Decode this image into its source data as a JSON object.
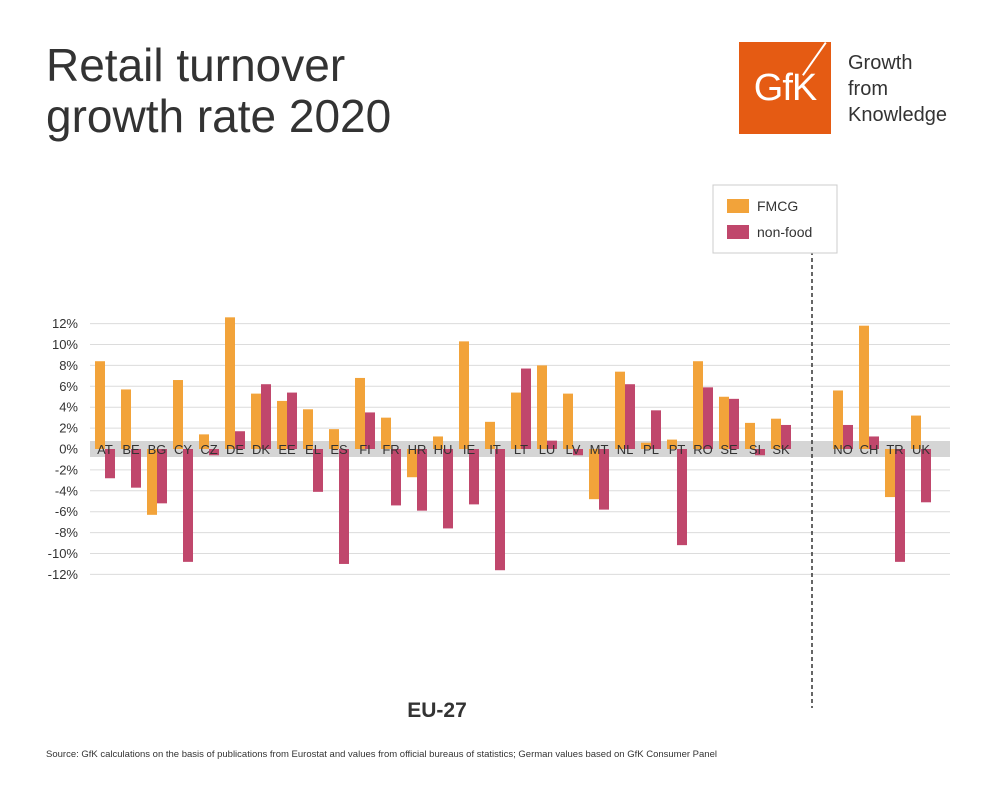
{
  "header": {
    "title_line1": "Retail turnover",
    "title_line2": "growth rate 2020"
  },
  "logo": {
    "text": "GfK",
    "tagline_line1": "Growth",
    "tagline_line2": "from",
    "tagline_line3": "Knowledge",
    "color": "#e55b13"
  },
  "footer": {
    "source": "Source: GfK calculations on the basis of publications from Eurostat and values from official bureaus of statistics; German values based on GfK Consumer Panel"
  },
  "chart_data": {
    "type": "bar",
    "group_label": "EU-27",
    "yticks": [
      "12%",
      "10%",
      "8%",
      "6%",
      "4%",
      "2%",
      "0%",
      "-2%",
      "-4%",
      "-6%",
      "-8%",
      "-10%",
      "-12%"
    ],
    "ylim": [
      -12,
      12.5
    ],
    "grid": true,
    "legend_position": "top-right",
    "categories": [
      "AT",
      "BE",
      "BG",
      "CY",
      "CZ",
      "DE",
      "DK",
      "EE",
      "EL",
      "ES",
      "FI",
      "FR",
      "HR",
      "HU",
      "IE",
      "IT",
      "LT",
      "LU",
      "LV",
      "MT",
      "NL",
      "PL",
      "PT",
      "RO",
      "SE",
      "SI",
      "SK",
      "NO",
      "CH",
      "TR",
      "UK"
    ],
    "series": [
      {
        "name": "FMCG",
        "color": "#f2a33a",
        "values": [
          8.4,
          5.7,
          -6.3,
          6.6,
          1.4,
          12.6,
          5.3,
          4.6,
          3.8,
          1.9,
          6.8,
          3.0,
          -2.7,
          1.2,
          10.3,
          2.6,
          5.4,
          8.0,
          5.3,
          -4.8,
          7.4,
          0.6,
          0.9,
          8.4,
          5.0,
          2.5,
          2.9,
          5.6,
          11.8,
          -4.6,
          3.2
        ]
      },
      {
        "name": "non-food",
        "color": "#c0476c",
        "values": [
          -2.8,
          -3.7,
          -5.2,
          -10.8,
          -0.6,
          1.7,
          6.2,
          5.4,
          -4.1,
          -11.0,
          3.5,
          -5.4,
          -5.9,
          -7.6,
          -5.3,
          -11.6,
          7.7,
          0.8,
          -0.6,
          -5.8,
          6.2,
          3.7,
          -9.2,
          5.9,
          4.8,
          -0.6,
          2.3,
          2.3,
          1.2,
          -10.8,
          -5.1
        ]
      }
    ]
  }
}
